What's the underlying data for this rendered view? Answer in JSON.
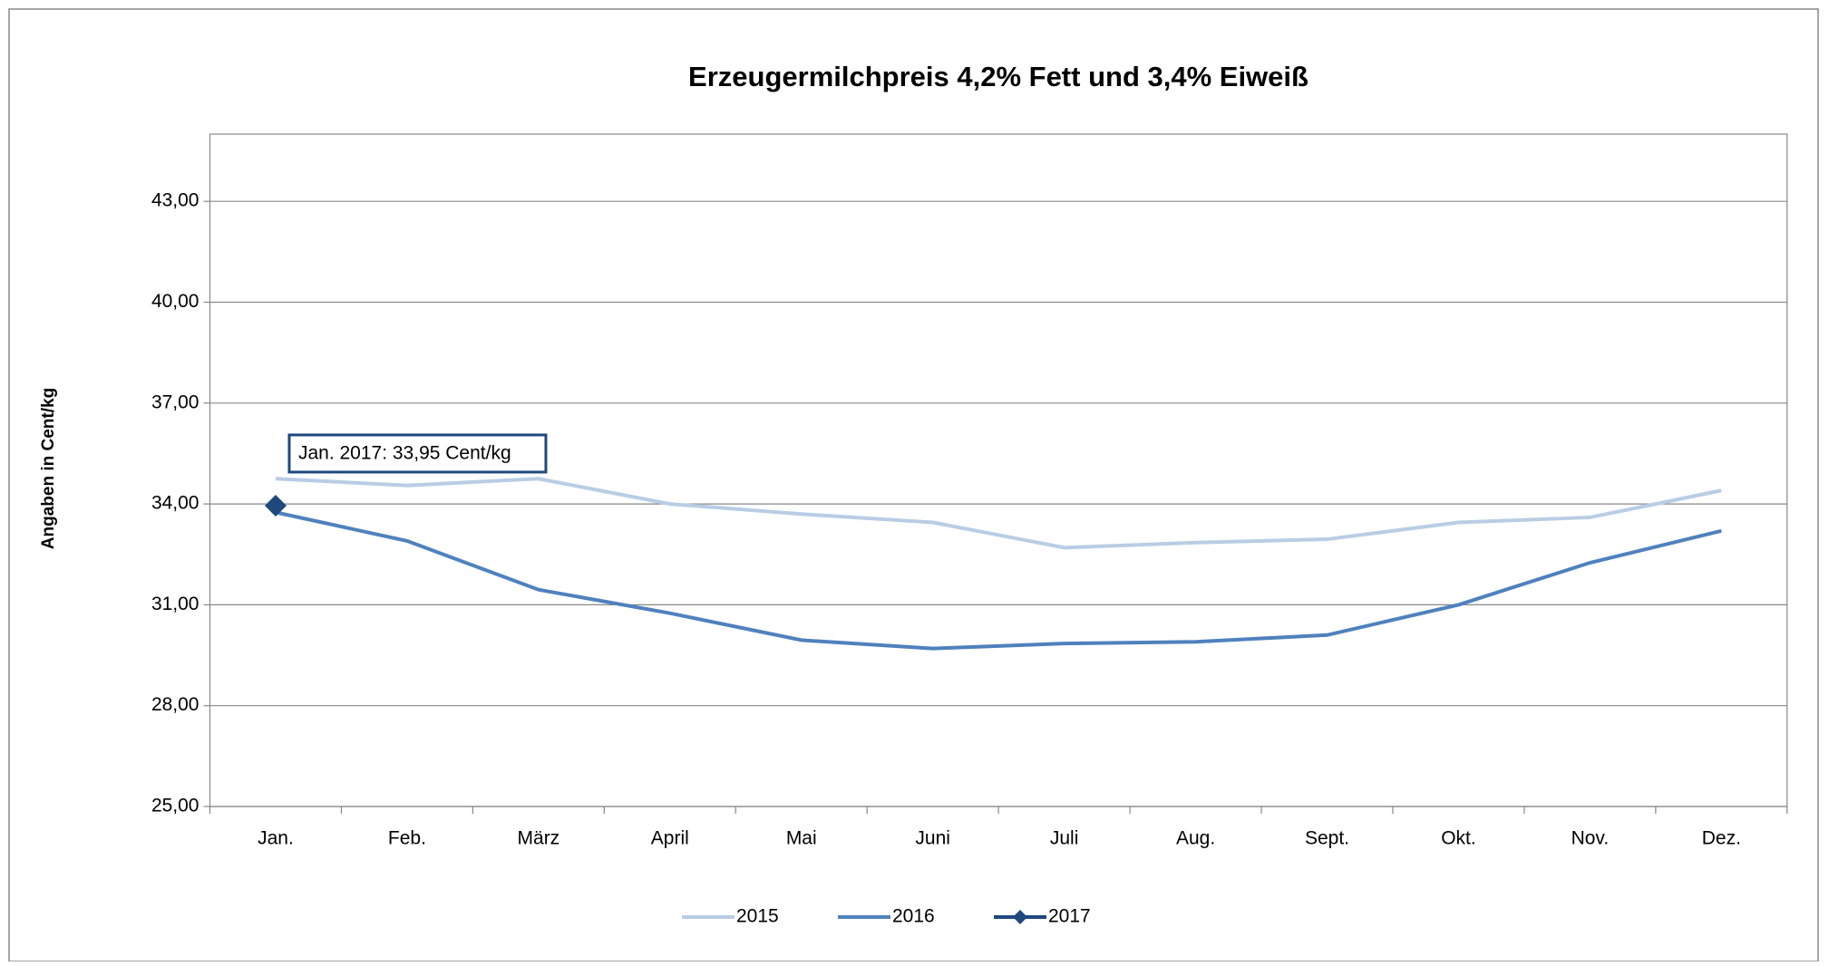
{
  "chart_data": {
    "type": "line",
    "title": "Erzeugermilchpreis 4,2% Fett und 3,4% Eiweiß",
    "y_label": "Angaben in Cent/kg",
    "annotation": "Jan. 2017: 33,95 Cent/kg",
    "categories": [
      "Jan.",
      "Feb.",
      "März",
      "April",
      "Mai",
      "Juni",
      "Juli",
      "Aug.",
      "Sept.",
      "Okt.",
      "Nov.",
      "Dez."
    ],
    "series": [
      {
        "name": "2015",
        "color": "#b9cde5",
        "marker": false,
        "values": [
          34.75,
          34.55,
          34.75,
          34.0,
          33.7,
          33.45,
          32.7,
          32.85,
          32.95,
          33.45,
          33.6,
          34.4
        ]
      },
      {
        "name": "2016",
        "color": "#4f81bd",
        "marker": false,
        "values": [
          33.75,
          32.9,
          31.45,
          30.75,
          29.95,
          29.7,
          29.85,
          29.9,
          30.1,
          31.0,
          32.25,
          33.2
        ]
      },
      {
        "name": "2017",
        "color": "#1f497d",
        "marker": true,
        "values": [
          33.95,
          null,
          null,
          null,
          null,
          null,
          null,
          null,
          null,
          null,
          null,
          null
        ]
      }
    ],
    "ylim": [
      25,
      45
    ],
    "yticks": [
      {
        "value": 25,
        "label": "25,00"
      },
      {
        "value": 28,
        "label": "28,00"
      },
      {
        "value": 31,
        "label": "31,00"
      },
      {
        "value": 34,
        "label": "34,00"
      },
      {
        "value": 37,
        "label": "37,00"
      },
      {
        "value": 40,
        "label": "40,00"
      },
      {
        "value": 43,
        "label": "43,00"
      }
    ],
    "grid": true,
    "legend": "bottom"
  }
}
